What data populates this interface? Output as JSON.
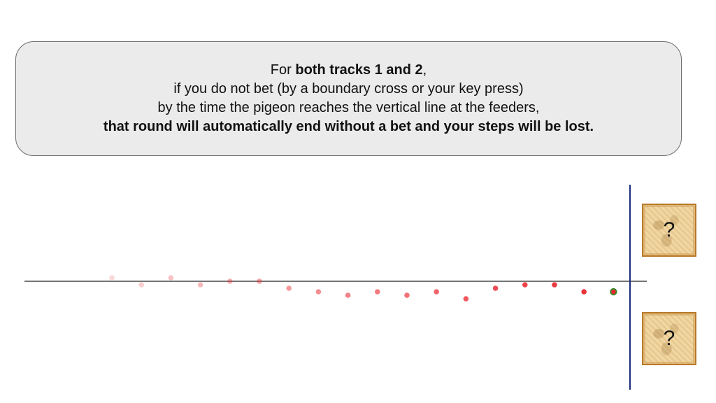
{
  "instruction": {
    "line1_prefix": "For ",
    "line1_bold": "both tracks 1 and 2",
    "line1_suffix": ",",
    "line2": "if you do not bet (by a boundary cross or your key press)",
    "line3": "by the time the pigeon reaches the vertical line at the feeders,",
    "line4": "that round will automatically end without a bet and your steps will be lost."
  },
  "feeders": {
    "top_mark": "?",
    "bottom_mark": "?"
  },
  "track": {
    "steps": [
      {
        "step": 1,
        "offset": 0.5
      },
      {
        "step": 2,
        "offset": -0.5
      },
      {
        "step": 3,
        "offset": 0.5
      },
      {
        "step": 4,
        "offset": -0.5
      },
      {
        "step": 5,
        "offset": 0.0
      },
      {
        "step": 6,
        "offset": 0.0
      },
      {
        "step": 7,
        "offset": -1.0
      },
      {
        "step": 8,
        "offset": -1.5
      },
      {
        "step": 9,
        "offset": -2.0
      },
      {
        "step": 10,
        "offset": -1.5
      },
      {
        "step": 11,
        "offset": -2.0
      },
      {
        "step": 12,
        "offset": -1.5
      },
      {
        "step": 13,
        "offset": -2.5
      },
      {
        "step": 14,
        "offset": -1.0
      },
      {
        "step": 15,
        "offset": -0.5
      },
      {
        "step": 16,
        "offset": -0.5
      },
      {
        "step": 17,
        "offset": -1.5
      },
      {
        "step": 18,
        "offset": -1.5
      }
    ],
    "dot_color": "#e8262d",
    "current_dot_ring": "#3a8a2a",
    "axis_color": "#222222",
    "finish_line_color": "#1a2a7a"
  }
}
